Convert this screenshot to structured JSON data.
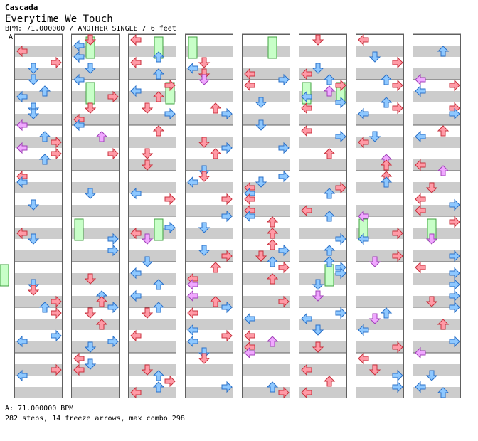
{
  "header": {
    "artist": "Cascada",
    "title": "Everytime We Touch",
    "info": "BPM: 71.000000 / ANOTHER SINGLE / 6 feet",
    "bpm_marker": "A"
  },
  "footer": {
    "bpm_line": "A: 71.000000 BPM",
    "summary": "282 steps, 14 freeze arrows, max combo 298"
  },
  "chart": {
    "columns": 8,
    "measures_per_column": 8,
    "lanes": [
      "left",
      "down",
      "up",
      "right"
    ],
    "colors": {
      "quarter_fill": "#ff9aa6",
      "quarter_stroke": "#c8303c",
      "eighth_fill": "#8ec8ff",
      "eighth_stroke": "#2a70c8",
      "sixteenth_fill": "#f0a8ff",
      "sixteenth_stroke": "#a040b8",
      "freeze_fill": "#c8ffc8",
      "freeze_stroke": "#40a040",
      "band_gray": "#cccccc",
      "border": "#606060"
    }
  }
}
